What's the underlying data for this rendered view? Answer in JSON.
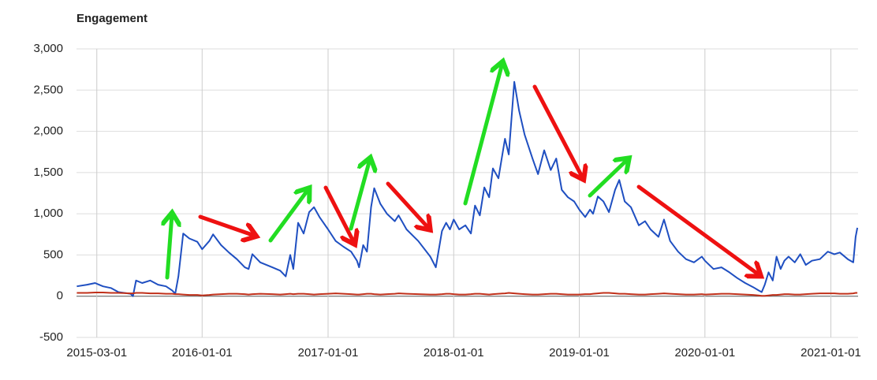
{
  "chart_data": {
    "type": "line",
    "title": "Engagement",
    "x": [
      "2015-01-02",
      "2015-02-01",
      "2015-02-24",
      "2015-03-19",
      "2015-04-11",
      "2015-05-03",
      "2015-06-07",
      "2015-06-14",
      "2015-06-23",
      "2015-07-11",
      "2015-08-03",
      "2015-08-26",
      "2015-09-18",
      "2015-10-06",
      "2015-10-15",
      "2015-10-24",
      "2015-11-07",
      "2015-11-25",
      "2015-12-18",
      "2016-01-01",
      "2016-01-22",
      "2016-02-02",
      "2016-02-25",
      "2016-03-19",
      "2016-04-11",
      "2016-05-04",
      "2016-05-15",
      "2016-05-26",
      "2016-06-18",
      "2016-07-23",
      "2016-08-15",
      "2016-08-31",
      "2016-09-13",
      "2016-09-22",
      "2016-10-06",
      "2016-10-22",
      "2016-11-07",
      "2016-11-21",
      "2016-12-07",
      "2017-01-01",
      "2017-01-23",
      "2017-02-15",
      "2017-03-09",
      "2017-03-26",
      "2017-04-01",
      "2017-04-13",
      "2017-04-24",
      "2017-05-06",
      "2017-05-15",
      "2017-06-02",
      "2017-06-21",
      "2017-07-14",
      "2017-07-25",
      "2017-08-17",
      "2017-09-20",
      "2017-10-25",
      "2017-11-10",
      "2017-11-28",
      "2017-12-10",
      "2017-12-21",
      "2018-01-01",
      "2018-01-17",
      "2018-02-04",
      "2018-02-20",
      "2018-03-04",
      "2018-03-18",
      "2018-03-31",
      "2018-04-14",
      "2018-04-25",
      "2018-05-11",
      "2018-05-30",
      "2018-06-10",
      "2018-06-26",
      "2018-07-10",
      "2018-07-26",
      "2018-08-18",
      "2018-09-03",
      "2018-09-21",
      "2018-10-10",
      "2018-10-26",
      "2018-11-11",
      "2018-11-29",
      "2018-12-17",
      "2019-01-01",
      "2019-01-18",
      "2019-02-01",
      "2019-02-10",
      "2019-02-24",
      "2019-03-12",
      "2019-03-28",
      "2019-04-15",
      "2019-04-27",
      "2019-05-13",
      "2019-05-31",
      "2019-06-23",
      "2019-07-11",
      "2019-07-27",
      "2019-08-19",
      "2019-09-04",
      "2019-09-22",
      "2019-10-15",
      "2019-11-07",
      "2019-11-30",
      "2019-12-23",
      "2020-01-01",
      "2020-01-26",
      "2020-02-18",
      "2020-03-12",
      "2020-04-04",
      "2020-04-27",
      "2020-05-20",
      "2020-06-05",
      "2020-06-14",
      "2020-06-23",
      "2020-07-04",
      "2020-07-16",
      "2020-07-27",
      "2020-08-08",
      "2020-08-19",
      "2020-08-31",
      "2020-09-18",
      "2020-10-04",
      "2020-10-20",
      "2020-11-07",
      "2020-11-30",
      "2020-12-23",
      "2021-01-11",
      "2021-01-27",
      "2021-02-19",
      "2021-03-07",
      "2021-03-14",
      "2021-03-19"
    ],
    "series": [
      {
        "color": "#1f4fc1",
        "values": [
          120,
          140,
          160,
          120,
          100,
          50,
          30,
          0,
          190,
          160,
          190,
          140,
          120,
          70,
          30,
          240,
          760,
          700,
          660,
          570,
          670,
          750,
          620,
          530,
          450,
          350,
          330,
          510,
          410,
          350,
          310,
          240,
          500,
          330,
          890,
          760,
          1020,
          1080,
          960,
          810,
          670,
          600,
          540,
          430,
          350,
          620,
          540,
          1080,
          1310,
          1120,
          1000,
          910,
          980,
          810,
          670,
          480,
          350,
          790,
          890,
          810,
          930,
          810,
          860,
          760,
          1100,
          980,
          1320,
          1200,
          1550,
          1430,
          1910,
          1720,
          2600,
          2250,
          1960,
          1670,
          1480,
          1770,
          1530,
          1670,
          1290,
          1200,
          1150,
          1050,
          960,
          1050,
          1000,
          1210,
          1150,
          1020,
          1290,
          1410,
          1150,
          1080,
          860,
          910,
          810,
          720,
          930,
          670,
          540,
          450,
          410,
          480,
          430,
          330,
          350,
          290,
          220,
          160,
          110,
          70,
          50,
          140,
          290,
          190,
          480,
          330,
          430,
          480,
          410,
          510,
          380,
          430,
          450,
          540,
          510,
          530,
          450,
          410,
          720,
          830
        ]
      },
      {
        "color": "#c0301a",
        "values": [
          40,
          40,
          45,
          45,
          40,
          40,
          35,
          35,
          40,
          40,
          35,
          35,
          30,
          30,
          25,
          25,
          20,
          15,
          15,
          10,
          15,
          20,
          25,
          30,
          30,
          25,
          20,
          25,
          30,
          25,
          20,
          25,
          30,
          25,
          30,
          30,
          25,
          20,
          25,
          30,
          35,
          30,
          25,
          20,
          20,
          25,
          30,
          30,
          25,
          20,
          25,
          30,
          35,
          30,
          25,
          20,
          20,
          25,
          30,
          30,
          25,
          20,
          20,
          25,
          30,
          30,
          25,
          20,
          25,
          30,
          35,
          40,
          35,
          30,
          25,
          20,
          20,
          25,
          30,
          30,
          25,
          20,
          20,
          20,
          25,
          25,
          30,
          35,
          40,
          40,
          35,
          30,
          30,
          25,
          20,
          20,
          25,
          30,
          35,
          30,
          25,
          20,
          20,
          25,
          20,
          25,
          30,
          30,
          25,
          20,
          15,
          10,
          5,
          5,
          10,
          15,
          15,
          20,
          25,
          25,
          20,
          20,
          25,
          30,
          35,
          35,
          35,
          30,
          30,
          35,
          40,
          40
        ]
      }
    ],
    "xlim": [
      "2015-01-01",
      "2021-03-21"
    ],
    "xticks": [
      "2015-03-01",
      "2016-01-01",
      "2017-01-01",
      "2018-01-01",
      "2019-01-01",
      "2020-01-01",
      "2021-01-01"
    ],
    "ylim": [
      -500,
      3000
    ],
    "yticks": [
      -500,
      0,
      500,
      {
        "value": 1000,
        "label": "1,000"
      },
      {
        "value": 1500,
        "label": "1,500"
      },
      {
        "value": 2000,
        "label": "2,000"
      },
      {
        "value": 2500,
        "label": "2,500"
      },
      {
        "value": 3000,
        "label": "3,000"
      }
    ],
    "grid": true
  }
}
